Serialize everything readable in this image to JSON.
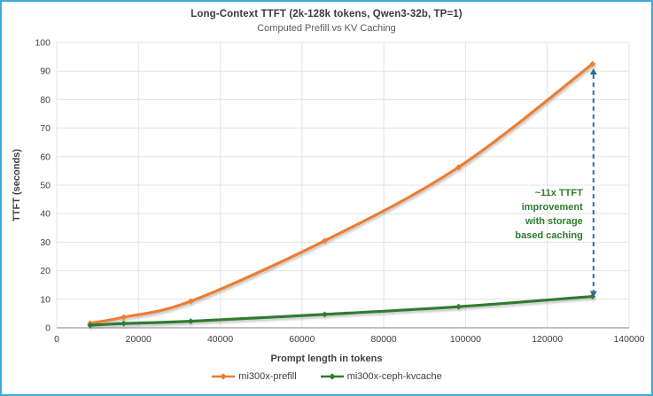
{
  "chart": {
    "title": "Long-Context TTFT (2k-128k tokens, Qwen3-32b, TP=1)",
    "subtitle": "Computed Prefill vs KV Caching",
    "xlabel": "Prompt length in tokens",
    "ylabel": "TTFT (seconds)"
  },
  "annotation": {
    "lines": [
      "~11x TTFT",
      "improvement",
      "with storage",
      "based caching"
    ],
    "color": "#2e7b2e"
  },
  "legend": [
    {
      "label": "mi300x-prefill",
      "color": "#ed7d31"
    },
    {
      "label": "mi300x-ceph-kvcache",
      "color": "#2e7b2e"
    }
  ],
  "colors": {
    "frame_border": "#3fa9da",
    "grid": "#e3e3e3",
    "axis": "#9a9a9a",
    "tick_text": "#404040",
    "dashed_arrow": "#2e6e91",
    "prefill": "#ed7d31",
    "kvcache": "#2e7b2e"
  },
  "chart_data": {
    "type": "line",
    "x": [
      8192,
      16384,
      32768,
      65536,
      98304,
      131072
    ],
    "series": [
      {
        "name": "mi300x-prefill",
        "color": "#ed7d31",
        "values": [
          1.6,
          3.7,
          9.3,
          30.5,
          56.3,
          92.5
        ]
      },
      {
        "name": "mi300x-ceph-kvcache",
        "color": "#2e7b2e",
        "values": [
          0.9,
          1.5,
          2.3,
          4.7,
          7.4,
          11.0
        ]
      }
    ],
    "title": "Long-Context TTFT (2k-128k tokens, Qwen3-32b, TP=1)",
    "subtitle": "Computed Prefill vs KV Caching",
    "xlabel": "Prompt length in tokens",
    "ylabel": "TTFT (seconds)",
    "xlim": [
      0,
      140000
    ],
    "ylim": [
      0,
      100
    ],
    "x_ticks": [
      0,
      20000,
      40000,
      60000,
      80000,
      100000,
      120000,
      140000
    ],
    "y_ticks": [
      0,
      10,
      20,
      30,
      40,
      50,
      60,
      70,
      80,
      90,
      100
    ],
    "grid": true,
    "legend_position": "bottom",
    "annotation_at_x": 131072
  }
}
